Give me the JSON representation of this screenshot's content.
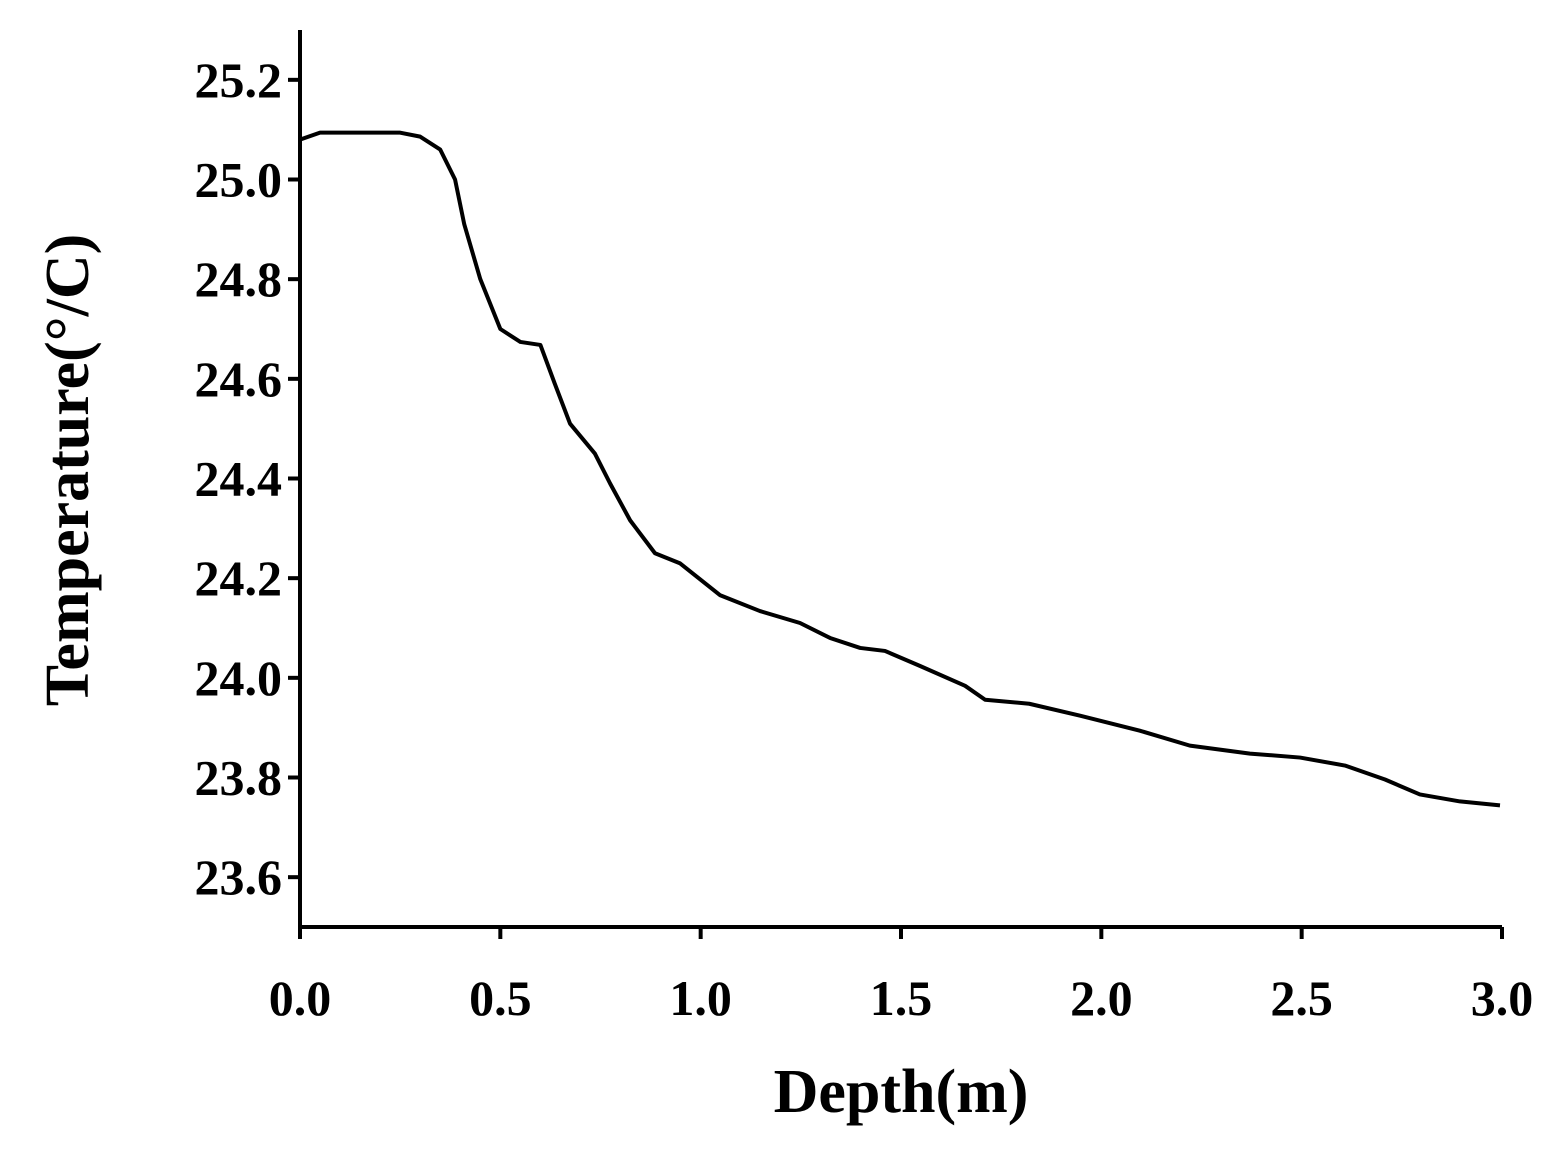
{
  "chart_data": {
    "type": "line",
    "x_label": "Depth(m)",
    "y_label": "Temperature(°/C)",
    "xlim": [
      0,
      3
    ],
    "ylim": [
      23.5,
      25.3
    ],
    "xticks": [
      {
        "value": 0,
        "label": "0.0"
      },
      0.5,
      {
        "value": 1,
        "label": "1.0"
      },
      1.5,
      {
        "value": 2,
        "label": "2.0"
      },
      2.5,
      {
        "value": 3,
        "label": "3.0"
      }
    ],
    "yticks": [
      23.6,
      23.8,
      {
        "value": 24,
        "label": "24.0"
      },
      24.2,
      24.4,
      24.6,
      24.8,
      {
        "value": 25,
        "label": "25.0"
      },
      25.2
    ],
    "x": [
      0,
      0.05,
      0.25,
      0.3,
      0.35,
      0.387,
      0.41,
      0.45,
      0.5,
      0.55,
      0.6,
      0.636,
      0.674,
      0.736,
      0.774,
      0.824,
      0.886,
      0.948,
      1.048,
      1.148,
      1.248,
      1.323,
      1.398,
      1.46,
      1.547,
      1.66,
      1.71,
      1.82,
      1.947,
      2.096,
      2.221,
      2.371,
      2.496,
      2.608,
      2.708,
      2.795,
      2.895,
      2.995
    ],
    "series": [
      {
        "color": "#000000",
        "values": [
          25.08,
          25.094,
          25.094,
          25.086,
          25.06,
          25.0,
          24.91,
          24.8,
          24.7,
          24.674,
          24.668,
          24.59,
          24.51,
          24.45,
          24.39,
          24.316,
          24.25,
          24.23,
          24.166,
          24.134,
          24.11,
          24.08,
          24.06,
          24.054,
          24.024,
          23.984,
          23.956,
          23.948,
          23.924,
          23.894,
          23.864,
          23.848,
          23.84,
          23.824,
          23.796,
          23.766,
          23.752,
          23.744
        ]
      }
    ]
  }
}
